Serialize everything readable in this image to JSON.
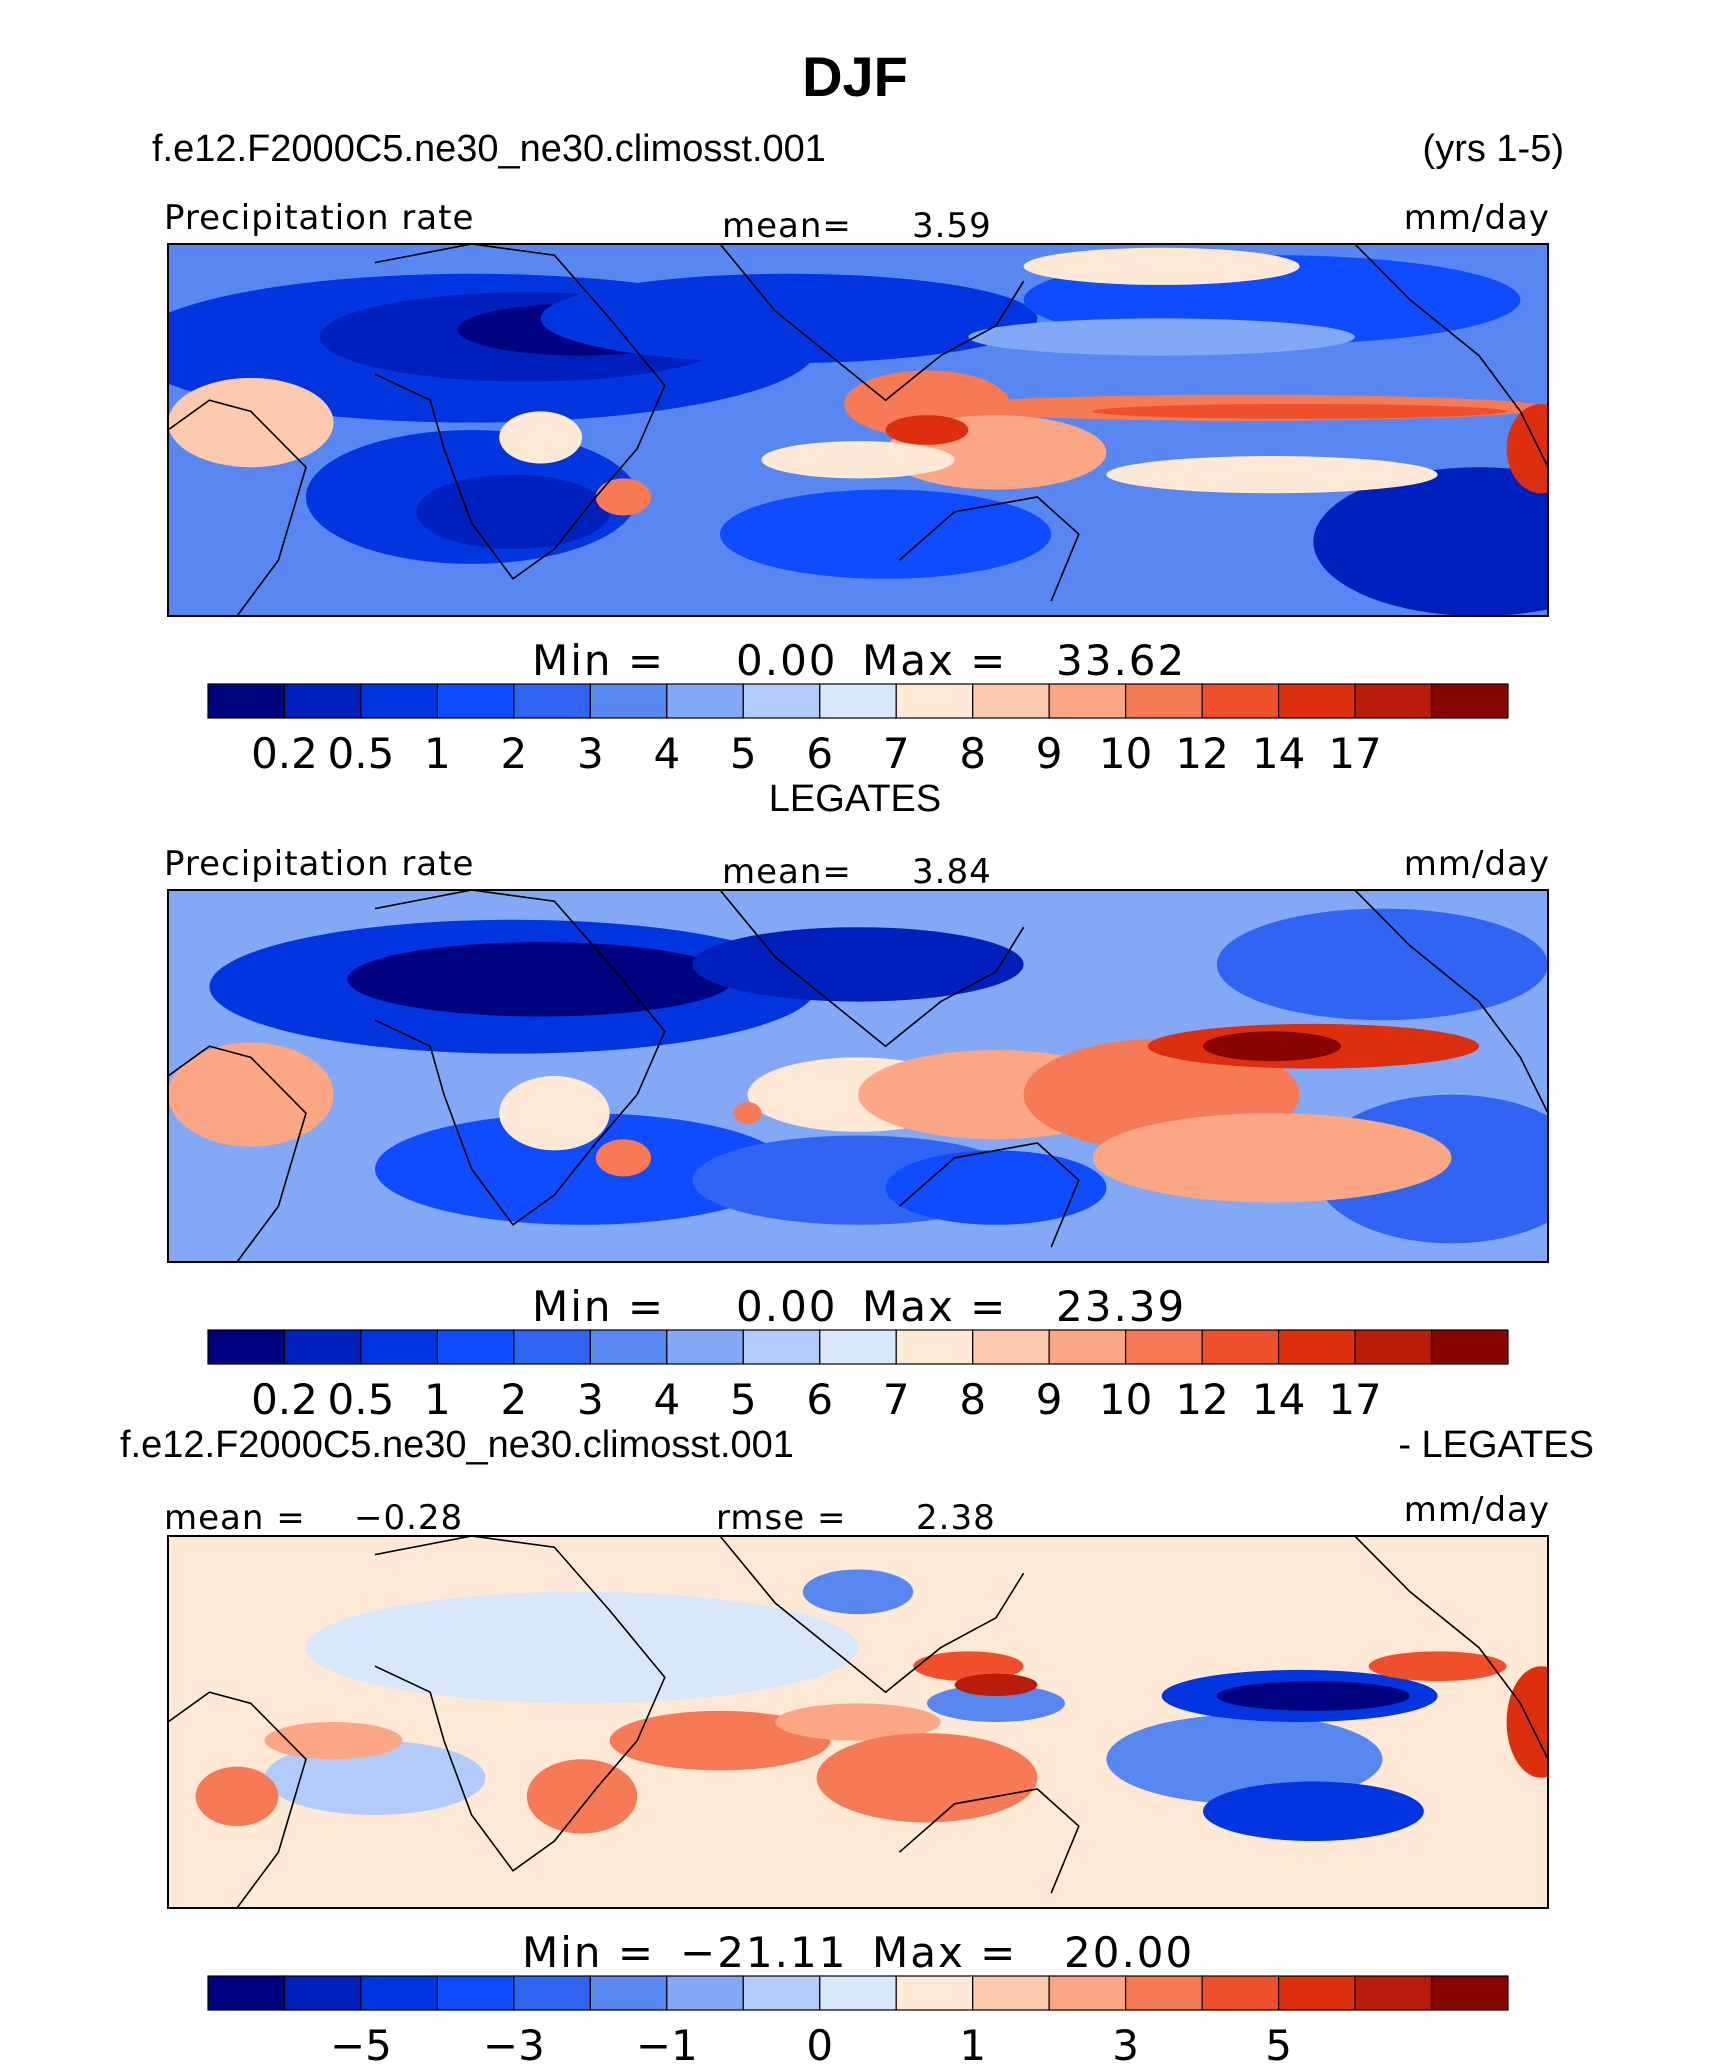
{
  "chart_data": {
    "type": "heatmap",
    "title": "DJF",
    "colors": [
      "#00037f",
      "#0020bd",
      "#0035e0",
      "#0f4bff",
      "#2f65f2",
      "#5887f2",
      "#83a8f5",
      "#b3cbf9",
      "#d9e7fb",
      "#fde9d6",
      "#fdcab0",
      "#fba685",
      "#f77a56",
      "#f04f2c",
      "#dd2e0e",
      "#b91d09",
      "#860500"
    ],
    "panels": [
      {
        "case_name": "f.e12.F2000C5.ne30_ne30.climosst.001",
        "years": "(yrs 1-5)",
        "variable": "Precipitation rate",
        "units": "mm/day",
        "stat_label": "mean=",
        "stat_value": "3.59",
        "min_label": "Min  =",
        "min_value": "0.00",
        "max_label": "Max  =",
        "max_value": "33.62",
        "colorbar_ticks": [
          "0.2",
          "0.5",
          "1",
          "2",
          "3",
          "4",
          "5",
          "6",
          "7",
          "8",
          "9",
          "10",
          "12",
          "14",
          "17"
        ]
      },
      {
        "case_name": "LEGATES",
        "variable": "Precipitation rate",
        "units": "mm/day",
        "stat_label": "mean=",
        "stat_value": "3.84",
        "min_label": "Min  =",
        "min_value": "0.00",
        "max_label": "Max  =",
        "max_value": "23.39",
        "colorbar_ticks": [
          "0.2",
          "0.5",
          "1",
          "2",
          "3",
          "4",
          "5",
          "6",
          "7",
          "8",
          "9",
          "10",
          "12",
          "14",
          "17"
        ]
      },
      {
        "case_name": "f.e12.F2000C5.ne30_ne30.climosst.001",
        "case_suffix": "- LEGATES",
        "units": "mm/day",
        "mean_label": "mean  =",
        "mean_value": "−0.28",
        "rmse_label": "rmse  =",
        "rmse_value": "2.38",
        "min_label": "Min  =",
        "min_value": "−21.11",
        "max_label": "Max  =",
        "max_value": "20.00",
        "colorbar_ticks": [
          "−5",
          "−3",
          "−1",
          "0",
          "1",
          "3",
          "5"
        ],
        "colorbar_tick_box_index": [
          2,
          4,
          6,
          8,
          10,
          12,
          14
        ]
      }
    ]
  }
}
